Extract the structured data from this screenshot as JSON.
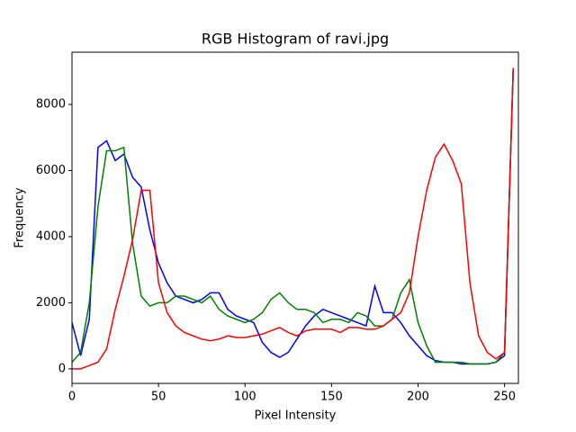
{
  "chart_data": {
    "type": "line",
    "title": "RGB Histogram of ravi.jpg",
    "x_label": "Pixel Intensity",
    "y_label": "Frequency",
    "x": [
      0,
      5,
      10,
      15,
      20,
      25,
      30,
      35,
      40,
      45,
      50,
      55,
      60,
      65,
      70,
      75,
      80,
      85,
      90,
      95,
      100,
      105,
      110,
      115,
      120,
      125,
      130,
      135,
      140,
      145,
      150,
      155,
      160,
      165,
      170,
      175,
      180,
      185,
      190,
      195,
      200,
      205,
      210,
      215,
      220,
      225,
      230,
      235,
      240,
      245,
      250,
      255
    ],
    "series": [
      {
        "color": "#0000ff",
        "values": [
          1400,
          400,
          1500,
          6700,
          6900,
          6300,
          6500,
          5800,
          5500,
          4200,
          3200,
          2600,
          2200,
          2100,
          2000,
          2100,
          2300,
          2300,
          1800,
          1600,
          1500,
          1400,
          800,
          500,
          350,
          500,
          900,
          1300,
          1600,
          1800,
          1700,
          1600,
          1500,
          1400,
          1300,
          2500,
          1700,
          1700,
          1400,
          1000,
          700,
          400,
          250,
          200,
          200,
          150,
          150,
          150,
          150,
          200,
          400,
          9100
        ]
      },
      {
        "color": "#008000",
        "values": [
          200,
          500,
          2000,
          4900,
          6600,
          6600,
          6700,
          3800,
          2200,
          1900,
          2000,
          2000,
          2200,
          2200,
          2100,
          2000,
          2200,
          1800,
          1600,
          1500,
          1400,
          1500,
          1700,
          2100,
          2300,
          2000,
          1800,
          1800,
          1700,
          1400,
          1500,
          1500,
          1400,
          1700,
          1600,
          1300,
          1300,
          1500,
          2300,
          2700,
          1400,
          700,
          200,
          200,
          200,
          200,
          150,
          150,
          150,
          200,
          500,
          9000
        ]
      },
      {
        "color": "#ff0000",
        "values": [
          0,
          0,
          100,
          200,
          600,
          1800,
          2800,
          3900,
          5400,
          5400,
          2600,
          1700,
          1300,
          1100,
          1000,
          900,
          850,
          900,
          1000,
          950,
          950,
          1000,
          1050,
          1150,
          1250,
          1100,
          1000,
          1150,
          1200,
          1200,
          1200,
          1100,
          1250,
          1250,
          1200,
          1200,
          1300,
          1500,
          1700,
          2300,
          4000,
          5400,
          6400,
          6800,
          6300,
          5600,
          2600,
          1000,
          500,
          300,
          500,
          9100
        ]
      }
    ],
    "xlim": [
      0,
      258
    ],
    "ylim": [
      -440,
      9580
    ],
    "xticks": [
      0,
      50,
      100,
      150,
      200,
      250
    ],
    "yticks": [
      0,
      2000,
      4000,
      6000,
      8000
    ]
  }
}
